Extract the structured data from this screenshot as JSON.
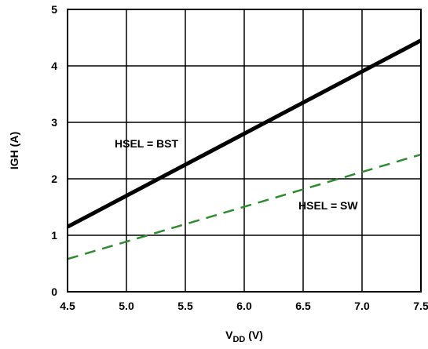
{
  "chart_data": {
    "type": "line",
    "title": "",
    "xlabel": {
      "main": "V",
      "sub": "DD",
      "unit": " (V)"
    },
    "ylabel": "IGH (A)",
    "xlim": [
      4.5,
      7.5
    ],
    "ylim": [
      0,
      5
    ],
    "x_ticks": [
      "4.5",
      "5.0",
      "5.5",
      "6.0",
      "6.5",
      "7.0",
      "7.5"
    ],
    "y_ticks": [
      "0",
      "1",
      "2",
      "3",
      "4",
      "5"
    ],
    "grid": true,
    "legend": "none",
    "series": [
      {
        "name": "HSEL = BST",
        "color": "#000000",
        "style": "solid",
        "x": [
          4.5,
          7.5
        ],
        "y": [
          1.15,
          4.45
        ]
      },
      {
        "name": "HSEL = SW",
        "color": "#2e8b2e",
        "style": "dashed",
        "x": [
          4.5,
          7.5
        ],
        "y": [
          0.58,
          2.43
        ]
      }
    ],
    "annotations": [
      {
        "text": "HSEL = BST",
        "series": 0
      },
      {
        "text": "HSEL = SW",
        "series": 1
      }
    ]
  }
}
